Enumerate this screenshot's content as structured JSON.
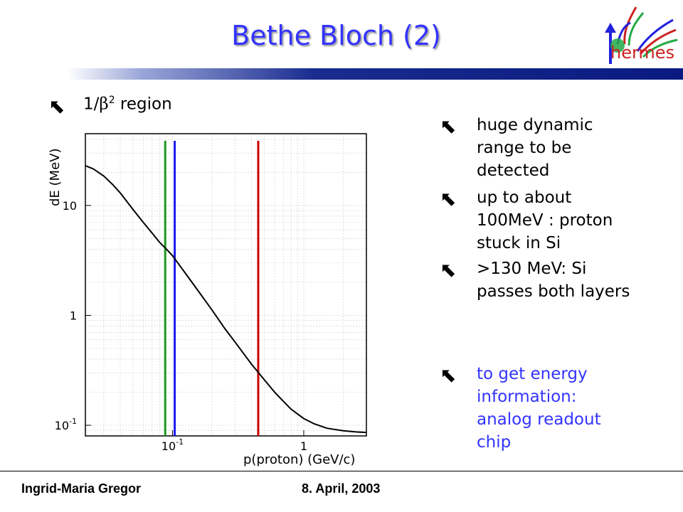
{
  "slide": {
    "title": "Bethe Bloch (2)",
    "logo_text": "hermes",
    "left_bullet": {
      "prefix": "1/",
      "beta": "β",
      "sup": "2",
      "suffix": " region"
    },
    "right_bullets": [
      {
        "lines": [
          "huge dynamic",
          "range to be",
          "detected"
        ],
        "color": "#000000"
      },
      {
        "lines": [
          "up to about",
          "100MeV : proton",
          "stuck in Si"
        ],
        "color": "#000000"
      },
      {
        "lines": [
          ">130 MeV: Si",
          "passes both layers"
        ],
        "color": "#000000"
      },
      {
        "lines": [
          "to get energy",
          "information:",
          "analog readout",
          "chip"
        ],
        "color": "#3333ff"
      }
    ],
    "footer": {
      "author": "Ingrid-Maria Gregor",
      "date": "8. April, 2003"
    }
  },
  "chart_data": {
    "type": "line",
    "title": "",
    "xlabel": "p(proton)  (GeV/c)",
    "ylabel": "dE  (MeV)",
    "xscale": "log",
    "yscale": "log",
    "xlim": [
      0.0217,
      3.0
    ],
    "ylim": [
      0.08,
      45
    ],
    "grid": true,
    "x_ticks": [
      {
        "value": 0.1,
        "base": "10",
        "exp": "-1"
      },
      {
        "value": 1,
        "base": "1",
        "exp": ""
      }
    ],
    "y_ticks": [
      {
        "value": 10,
        "base": "10",
        "exp": ""
      },
      {
        "value": 1,
        "base": "1",
        "exp": ""
      },
      {
        "value": 0.1,
        "base": "10",
        "exp": "-1"
      }
    ],
    "series": [
      {
        "x": [
          0.0217,
          0.025,
          0.03,
          0.035,
          0.04,
          0.05,
          0.06,
          0.07,
          0.08,
          0.09,
          0.1,
          0.12,
          0.15,
          0.2,
          0.25,
          0.3,
          0.4,
          0.5,
          0.6,
          0.7,
          0.8,
          1.0,
          1.2,
          1.5,
          2.0,
          2.5,
          3.0
        ],
        "y": [
          23,
          21.5,
          18.5,
          15.5,
          13,
          9.2,
          7,
          5.6,
          4.6,
          4.0,
          3.5,
          2.6,
          1.8,
          1.12,
          0.76,
          0.57,
          0.36,
          0.26,
          0.2,
          0.165,
          0.14,
          0.115,
          0.103,
          0.094,
          0.089,
          0.087,
          0.086
        ],
        "color": "#000000"
      }
    ],
    "vertical_lines": [
      {
        "x": 0.088,
        "color": "#1f9a1f"
      },
      {
        "x": 0.104,
        "color": "#1a1aee"
      },
      {
        "x": 0.45,
        "color": "#cc0000"
      }
    ]
  }
}
